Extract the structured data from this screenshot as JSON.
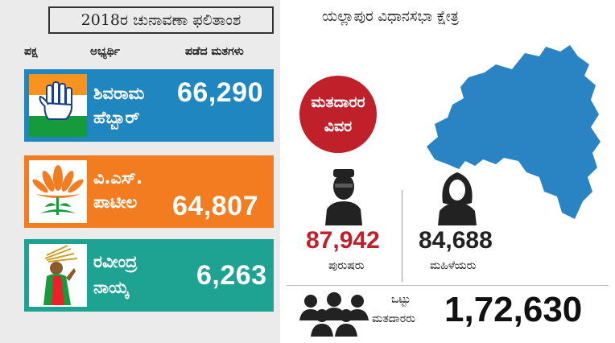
{
  "header": {
    "title": "2018ರ ಚುನಾವಣಾ ಫಲಿತಾಂಶ",
    "col_party": "ಪಕ್ಷ",
    "col_candidate": "ಅಭ್ಯರ್ಥಿ",
    "col_votes": "ಪಡೆದ ಮತಗಳು"
  },
  "candidates": [
    {
      "name_line1": "ಶಿವರಾಮ",
      "name_line2": "ಹೆಬ್ಬಾರ್",
      "votes": "66,290",
      "party_symbol": "hand-icon",
      "color": "#1f86c0"
    },
    {
      "name_line1": "ವಿ.ಎಸ್.",
      "name_line2": "ಪಾಟೀಲ",
      "votes": "64,807",
      "party_symbol": "lotus-icon",
      "color": "#f47c20"
    },
    {
      "name_line1": "ರವೀಂದ್ರ",
      "name_line2": "ನಾಯ್ಕ",
      "votes": "6,263",
      "party_symbol": "farmer-woman-icon",
      "color": "#1ea393"
    }
  ],
  "constituency": {
    "title": "ಯಲ್ಲಾಪುರ ವಿಧಾನಸಭಾ ಕ್ಷೇತ್ರ",
    "map_color": "#2a84c4"
  },
  "voters": {
    "badge_line1": "ಮತದಾರರ",
    "badge_line2": "ವಿವರ",
    "badge_color": "#c0202a",
    "male_count": "87,942",
    "male_label": "ಪುರುಷರು",
    "male_color": "#c0202a",
    "female_count": "84,688",
    "female_label": "ಮಹಿಳೆಯರು",
    "female_color": "#222222",
    "total_label_line1": "ಒಟ್ಟು",
    "total_label_line2": "ಮತದಾರರು",
    "total_count": "1,72,630"
  }
}
